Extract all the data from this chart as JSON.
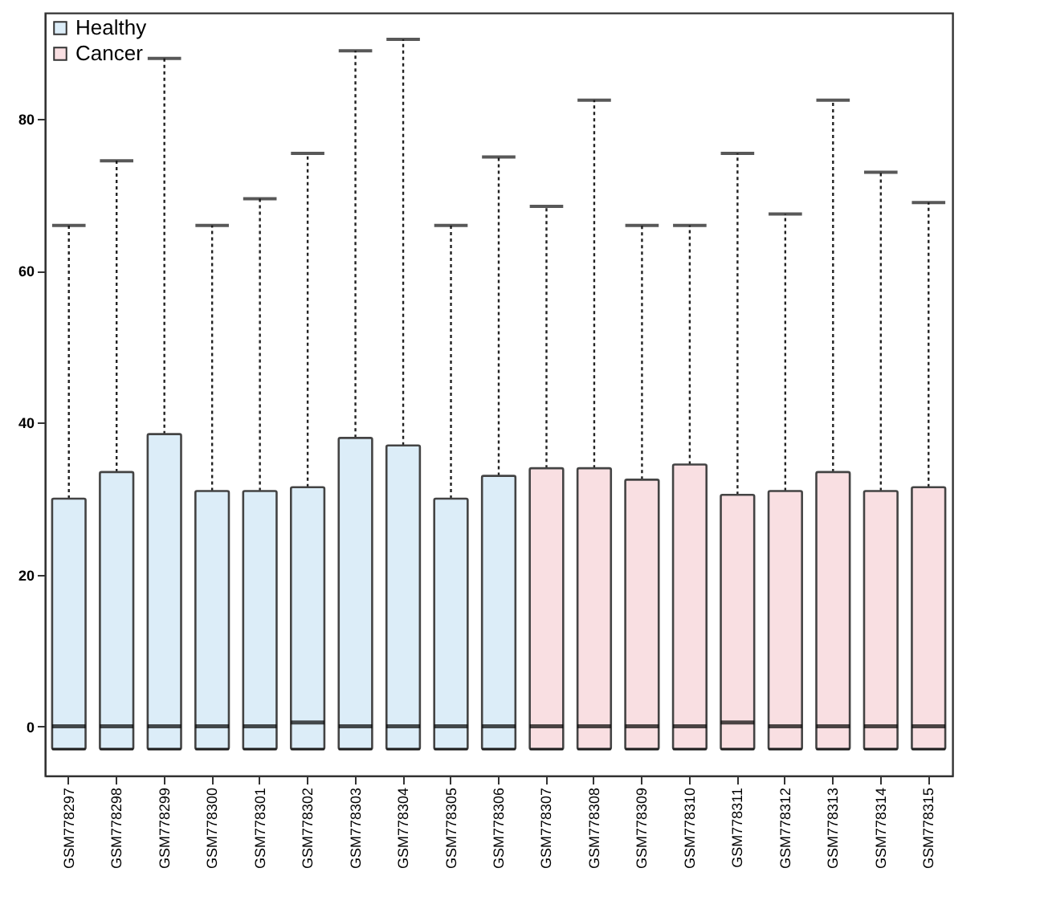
{
  "chart_data": {
    "type": "box",
    "categories": [
      "GSM778297",
      "GSM778298",
      "GSM778299",
      "GSM778300",
      "GSM778301",
      "GSM778302",
      "GSM778303",
      "GSM778304",
      "GSM778305",
      "GSM778306",
      "GSM778307",
      "GSM778308",
      "GSM778309",
      "GSM778310",
      "GSM778311",
      "GSM778312",
      "GSM778313",
      "GSM778314",
      "GSM778315"
    ],
    "series": [
      {
        "name": "Healthy",
        "color": "#dcedf8",
        "boxes": [
          {
            "low": -3,
            "q1": -3,
            "median": 0,
            "q3": 30,
            "high": 66
          },
          {
            "low": -3,
            "q1": -3,
            "median": 0,
            "q3": 33.5,
            "high": 74.5
          },
          {
            "low": -3,
            "q1": -3,
            "median": 0,
            "q3": 38.5,
            "high": 88
          },
          {
            "low": -3,
            "q1": -3,
            "median": 0,
            "q3": 31,
            "high": 66
          },
          {
            "low": -3,
            "q1": -3,
            "median": 0,
            "q3": 31,
            "high": 69.5
          },
          {
            "low": -3,
            "q1": -3,
            "median": 0.5,
            "q3": 31.5,
            "high": 75.5
          },
          {
            "low": -3,
            "q1": -3,
            "median": 0,
            "q3": 38,
            "high": 89
          },
          {
            "low": -3,
            "q1": -3,
            "median": 0,
            "q3": 37,
            "high": 90.5
          },
          {
            "low": -3,
            "q1": -3,
            "median": 0,
            "q3": 30,
            "high": 66
          },
          {
            "low": -3,
            "q1": -3,
            "median": 0,
            "q3": 33,
            "high": 75
          },
          null,
          null,
          null,
          null,
          null,
          null,
          null,
          null,
          null
        ]
      },
      {
        "name": "Cancer",
        "color": "#f9dfe2",
        "boxes": [
          null,
          null,
          null,
          null,
          null,
          null,
          null,
          null,
          null,
          null,
          {
            "low": -3,
            "q1": -3,
            "median": 0,
            "q3": 34,
            "high": 68.5
          },
          {
            "low": -3,
            "q1": -3,
            "median": 0,
            "q3": 34,
            "high": 82.5
          },
          {
            "low": -3,
            "q1": -3,
            "median": 0,
            "q3": 32.5,
            "high": 66
          },
          {
            "low": -3,
            "q1": -3,
            "median": 0,
            "q3": 34.5,
            "high": 66
          },
          {
            "low": -3,
            "q1": -3,
            "median": 0.5,
            "q3": 30.5,
            "high": 75.5
          },
          {
            "low": -3,
            "q1": -3,
            "median": 0,
            "q3": 31,
            "high": 67.5
          },
          {
            "low": -3,
            "q1": -3,
            "median": 0,
            "q3": 33.5,
            "high": 82.5
          },
          {
            "low": -3,
            "q1": -3,
            "median": 0,
            "q3": 31,
            "high": 73
          },
          {
            "low": -3,
            "q1": -3,
            "median": 0,
            "q3": 31.5,
            "high": 69
          }
        ]
      }
    ],
    "ylim": [
      -6.5,
      94
    ],
    "yticks": [
      0,
      20,
      40,
      60,
      80
    ],
    "grid": false,
    "legend": "top left"
  }
}
